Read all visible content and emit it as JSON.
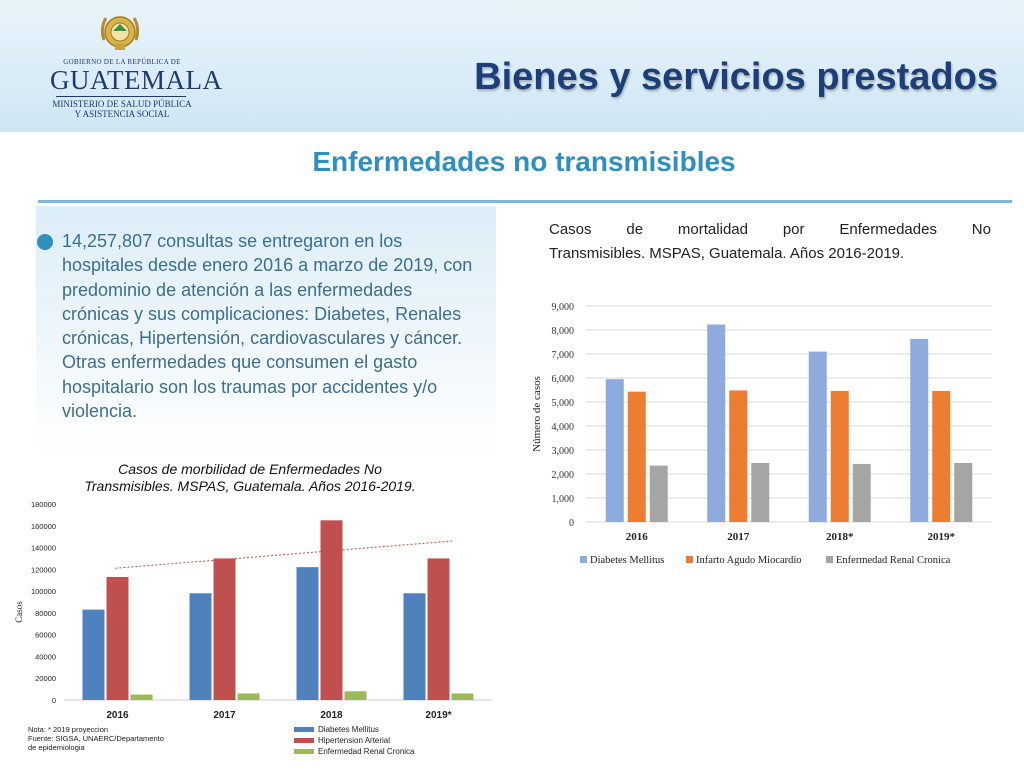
{
  "header": {
    "logo": {
      "government_line": "GOBIERNO DE LA REPÚBLICA DE",
      "country": "GUATEMALA",
      "ministry_line1": "MINISTERIO DE SALUD PÚBLICA",
      "ministry_line2": "Y ASISTENCIA SOCIAL"
    },
    "title": "Bienes y servicios prestados"
  },
  "section_title": "Enfermedades no transmisibles",
  "text": {
    "paragraph": "14,257,807 consultas se entregaron en los hospitales desde enero 2016 a marzo de 2019, con predominio de atención a las enfermedades crónicas y sus complicaciones: Diabetes,  Renales crónicas, Hipertensión, cardiovasculares  y cáncer. Otras enfermedades que consumen el gasto hospitalario son los traumas por accidentes y/o violencia."
  },
  "colors": {
    "title": "#1c3f7a",
    "section": "#2f8fbd",
    "mort_diabetes": "#8faadc",
    "mort_infarto": "#ed7d31",
    "mort_renal": "#a5a5a5",
    "morb_diabetes": "#4f81bd",
    "morb_hipertension": "#c0504d",
    "morb_renal": "#9bbb59"
  },
  "chart_data": [
    {
      "type": "bar",
      "caption_line1": "Casos de mortalidad por Enfermedades No",
      "caption_line2": "Transmisibles. MSPAS, Guatemala. Años 2016-2019.",
      "ylabel": "Número de casos",
      "categories": [
        "2016",
        "2017",
        "2018*",
        "2019*"
      ],
      "series": [
        {
          "name": "Diabetes Mellitus",
          "values": [
            5950,
            8230,
            7100,
            7630
          ]
        },
        {
          "name": "Infarto Agudo Miocardio",
          "values": [
            5430,
            5480,
            5460,
            5460
          ]
        },
        {
          "name": "Enfermedad Renal Cronica",
          "values": [
            2350,
            2460,
            2420,
            2460
          ]
        }
      ],
      "ylim": [
        0,
        9000
      ],
      "yticks": [
        "0",
        "1,000",
        "2,000",
        "3,000",
        "4,000",
        "5,000",
        "6,000",
        "7,000",
        "8,000",
        "9,000"
      ],
      "grid": true,
      "legend": "bottom"
    },
    {
      "type": "bar",
      "caption_line1": "Casos de morbilidad de Enfermedades No",
      "caption_line2": "Transmisibles. MSPAS, Guatemala. Años 2016-2019.",
      "ylabel": "Casos",
      "categories": [
        "2016",
        "2017",
        "2018",
        "2019*"
      ],
      "series": [
        {
          "name": "Diabetes Mellitus",
          "values": [
            83000,
            98000,
            122000,
            98000
          ]
        },
        {
          "name": "Hipertension Arterial",
          "values": [
            113000,
            130000,
            165000,
            130000
          ]
        },
        {
          "name": "Enfermedad Renal Cronica",
          "values": [
            5000,
            6000,
            8000,
            6000
          ]
        }
      ],
      "ylim": [
        0,
        180000
      ],
      "yticks": [
        "0",
        "20000",
        "40000",
        "60000",
        "80000",
        "100000",
        "120000",
        "140000",
        "160000",
        "180000"
      ],
      "trendline": {
        "series": "Hipertension Arterial",
        "start": 121000,
        "end": 146000
      },
      "grid": false,
      "legend": "bottom",
      "note_lines": [
        "Nota: * 2019 proyeccion",
        "Fuente: SIGSA, UNAERC/Departamento",
        "de epidemiologia"
      ]
    }
  ]
}
